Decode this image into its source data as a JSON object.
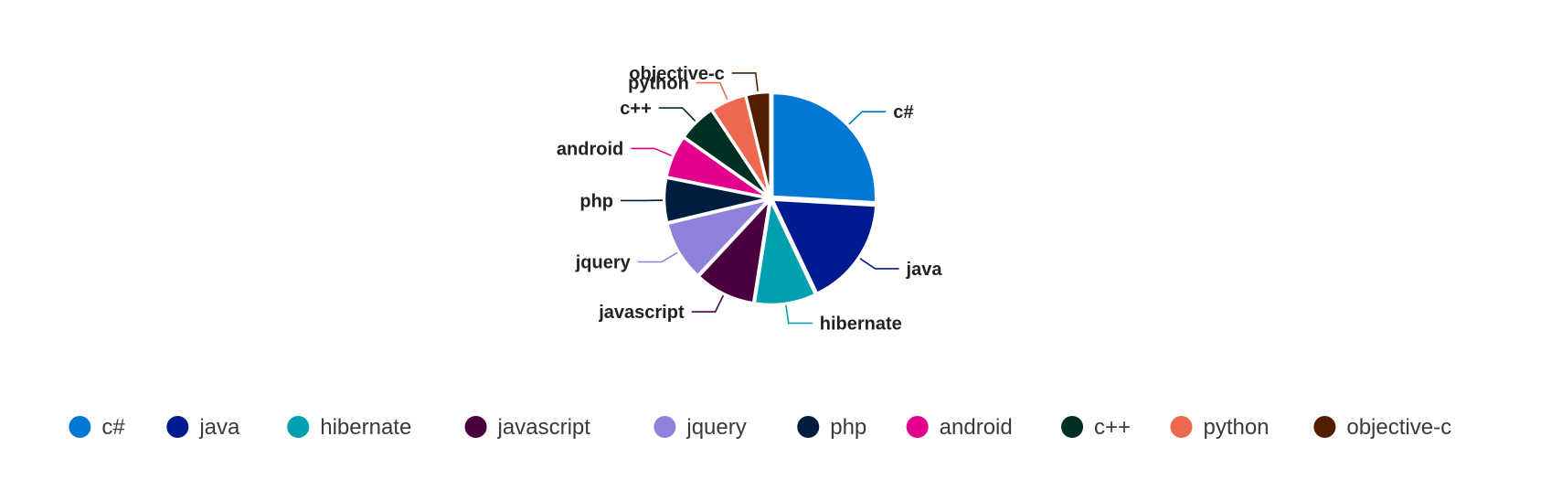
{
  "chart_data": {
    "type": "pie",
    "title": "",
    "legend": "bottom",
    "start_angle_deg": 0,
    "direction": "clockwise",
    "categories": [
      "c#",
      "java",
      "hibernate",
      "javascript",
      "jquery",
      "php",
      "android",
      "c++",
      "python",
      "objective-c"
    ],
    "values": [
      25.5,
      16.8,
      9.4,
      9.3,
      9.2,
      6.8,
      6.5,
      5.8,
      5.5,
      3.7
    ],
    "colors": [
      "#0078d4",
      "#001a8f",
      "#00a0ae",
      "#4a003f",
      "#9181da",
      "#001c3f",
      "#e3008c",
      "#003023",
      "#ef6950",
      "#531e00"
    ]
  }
}
